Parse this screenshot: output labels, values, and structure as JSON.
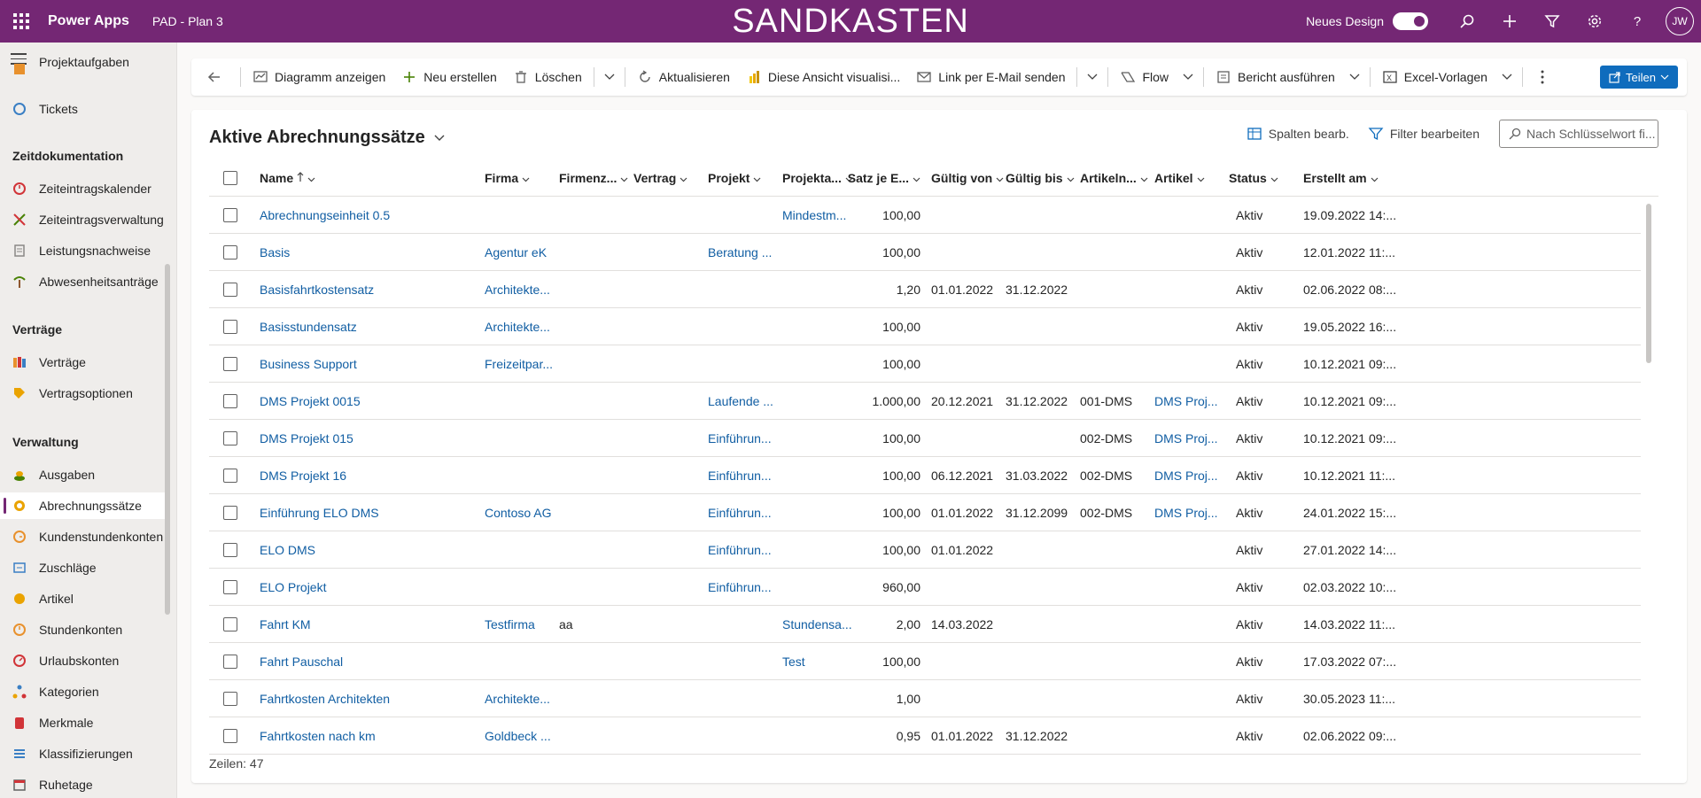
{
  "topbar": {
    "app_name": "Power Apps",
    "env_name": "PAD - Plan 3",
    "banner": "SANDKASTEN",
    "new_design_label": "Neues Design",
    "new_design_on": true,
    "avatar_initials": "JW",
    "bg_color": "#742774"
  },
  "sidebar": {
    "partial_top": "Projektaufgaben",
    "tickets": "Tickets",
    "groups": {
      "zeit": "Zeitdokumentation",
      "vertraege": "Verträge",
      "verwaltung": "Verwaltung"
    },
    "items": [
      {
        "label": "Zeiteintragskalender",
        "icon": "clock-icon"
      },
      {
        "label": "Zeiteintragsverwaltung",
        "icon": "tools-icon"
      },
      {
        "label": "Leistungsnachweise",
        "icon": "list-icon"
      },
      {
        "label": "Abwesenheitsanträge",
        "icon": "palm-icon"
      },
      {
        "label": "Verträge",
        "icon": "books-icon"
      },
      {
        "label": "Vertragsoptionen",
        "icon": "tag-icon"
      },
      {
        "label": "Ausgaben",
        "icon": "coins-icon"
      },
      {
        "label": "Abrechnungssätze",
        "icon": "rate-icon",
        "selected": true
      },
      {
        "label": "Kundenstundenkonten",
        "icon": "customer-clock-icon"
      },
      {
        "label": "Zuschläge",
        "icon": "surcharge-icon"
      },
      {
        "label": "Artikel",
        "icon": "article-icon"
      },
      {
        "label": "Stundenkonten",
        "icon": "hour-account-icon"
      },
      {
        "label": "Urlaubskonten",
        "icon": "vacation-icon"
      },
      {
        "label": "Kategorien",
        "icon": "category-icon"
      },
      {
        "label": "Merkmale",
        "icon": "feature-icon"
      },
      {
        "label": "Klassifizierungen",
        "icon": "classification-icon"
      },
      {
        "label": "Ruhetage",
        "icon": "calendar-icon"
      }
    ]
  },
  "commandbar": {
    "show_chart": "Diagramm anzeigen",
    "new": "Neu erstellen",
    "delete": "Löschen",
    "refresh": "Aktualisieren",
    "visualize": "Diese Ansicht visualisi...",
    "email_link": "Link per E-Mail senden",
    "flow": "Flow",
    "run_report": "Bericht ausführen",
    "excel_templates": "Excel-Vorlagen",
    "share": "Teilen"
  },
  "view": {
    "title": "Aktive Abrechnungssätze",
    "edit_columns": "Spalten bearb.",
    "edit_filters": "Filter bearbeiten",
    "search_placeholder": "Nach Schlüsselwort fi...",
    "footer": "Zeilen: 47"
  },
  "grid": {
    "columns": [
      "Name",
      "Firma",
      "Firmenz...",
      "Vertrag",
      "Projekt",
      "Projekta...",
      "Satz je E...",
      "Gültig von",
      "Gültig bis",
      "Artikeln...",
      "Artikel",
      "Status",
      "Erstellt am"
    ],
    "rows": [
      [
        "Abrechnungseinheit 0.5",
        "",
        "",
        "",
        "",
        "Mindestm...",
        "100,00",
        "",
        "",
        "",
        "",
        "Aktiv",
        "19.09.2022 14:..."
      ],
      [
        "Basis",
        "Agentur eK",
        "",
        "",
        "Beratung ...",
        "",
        "100,00",
        "",
        "",
        "",
        "",
        "Aktiv",
        "12.01.2022 11:..."
      ],
      [
        "Basisfahrtkostensatz",
        "Architekte...",
        "",
        "",
        "",
        "",
        "1,20",
        "01.01.2022",
        "31.12.2022",
        "",
        "",
        "Aktiv",
        "02.06.2022 08:..."
      ],
      [
        "Basisstundensatz",
        "Architekte...",
        "",
        "",
        "",
        "",
        "100,00",
        "",
        "",
        "",
        "",
        "Aktiv",
        "19.05.2022 16:..."
      ],
      [
        "Business Support",
        "Freizeitpar...",
        "",
        "",
        "",
        "",
        "100,00",
        "",
        "",
        "",
        "",
        "Aktiv",
        "10.12.2021 09:..."
      ],
      [
        "DMS Projekt 0015",
        "",
        "",
        "",
        "Laufende ...",
        "",
        "1.000,00",
        "20.12.2021",
        "31.12.2022",
        "001-DMS",
        "DMS Proj...",
        "Aktiv",
        "10.12.2021 09:..."
      ],
      [
        "DMS Projekt 015",
        "",
        "",
        "",
        "Einführun...",
        "",
        "100,00",
        "",
        "",
        "002-DMS",
        "DMS Proj...",
        "Aktiv",
        "10.12.2021 09:..."
      ],
      [
        "DMS Projekt 16",
        "",
        "",
        "",
        "Einführun...",
        "",
        "100,00",
        "06.12.2021",
        "31.03.2022",
        "002-DMS",
        "DMS Proj...",
        "Aktiv",
        "10.12.2021 11:..."
      ],
      [
        "Einführung ELO DMS",
        "Contoso AG",
        "",
        "",
        "Einführun...",
        "",
        "100,00",
        "01.01.2022",
        "31.12.2099",
        "002-DMS",
        "DMS Proj...",
        "Aktiv",
        "24.01.2022 15:..."
      ],
      [
        "ELO DMS",
        "",
        "",
        "",
        "Einführun...",
        "",
        "100,00",
        "01.01.2022",
        "",
        "",
        "",
        "Aktiv",
        "27.01.2022 14:..."
      ],
      [
        "ELO Projekt",
        "",
        "",
        "",
        "Einführun...",
        "",
        "960,00",
        "",
        "",
        "",
        "",
        "Aktiv",
        "02.03.2022 10:..."
      ],
      [
        "Fahrt KM",
        "Testfirma",
        "aa",
        "",
        "",
        "Stundensa...",
        "2,00",
        "14.03.2022",
        "",
        "",
        "",
        "Aktiv",
        "14.03.2022 11:..."
      ],
      [
        "Fahrt Pauschal",
        "",
        "",
        "",
        "",
        "Test",
        "100,00",
        "",
        "",
        "",
        "",
        "Aktiv",
        "17.03.2022 07:..."
      ],
      [
        "Fahrtkosten Architekten",
        "Architekte...",
        "",
        "",
        "",
        "",
        "1,00",
        "",
        "",
        "",
        "",
        "Aktiv",
        "30.05.2023 11:..."
      ],
      [
        "Fahrtkosten nach km",
        "Goldbeck ...",
        "",
        "",
        "",
        "",
        "0,95",
        "01.01.2022",
        "31.12.2022",
        "",
        "",
        "Aktiv",
        "02.06.2022 09:..."
      ]
    ]
  }
}
